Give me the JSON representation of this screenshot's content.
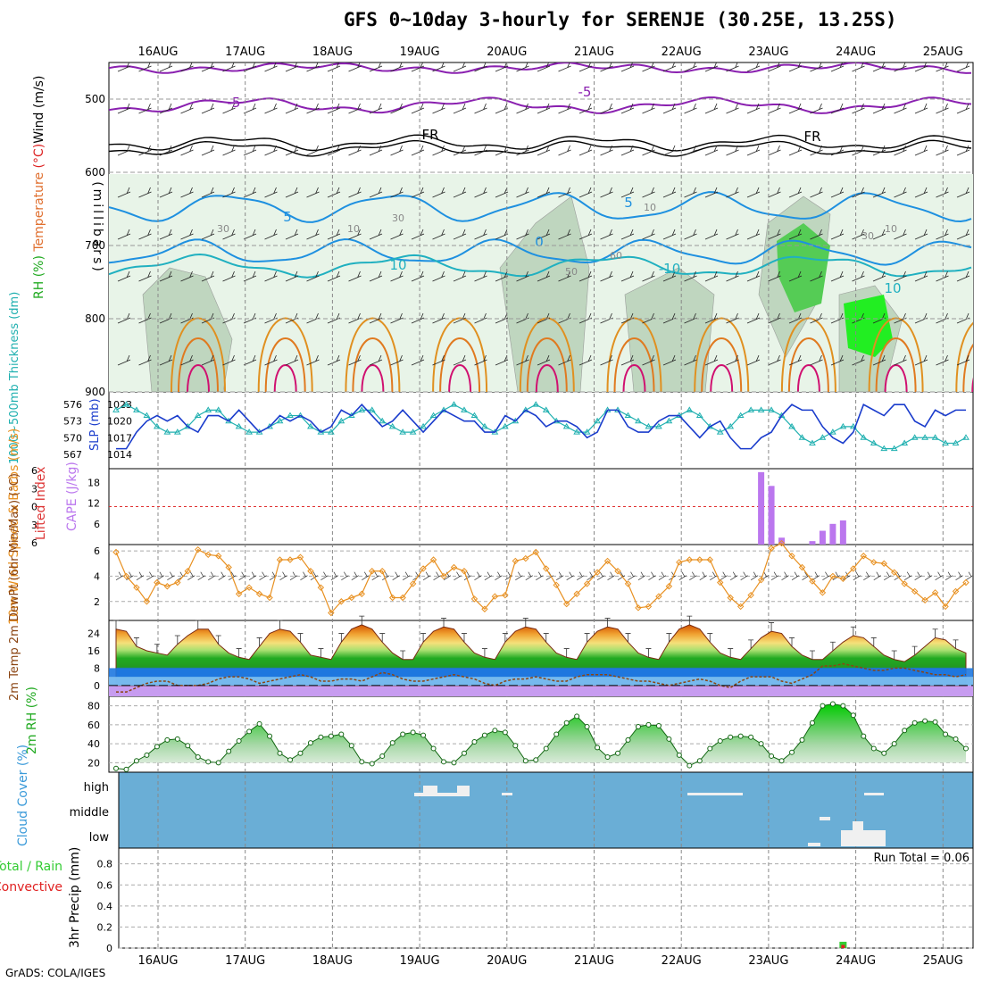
{
  "title": "GFS 0~10day 3-hourly for SERENJE (30.25E, 13.25S)",
  "credit": "GrADS: COLA/IGES",
  "dates": [
    "16AUG",
    "17AUG",
    "18AUG",
    "19AUG",
    "20AUG",
    "21AUG",
    "22AUG",
    "23AUG",
    "24AUG",
    "25AUG"
  ],
  "colors": {
    "temp_contour_cold": "#8a20b0",
    "temp_contour_cool": "#1e90e0",
    "temp_contour_warm": "#e09020",
    "temp_contour_hot": "#d01070",
    "freezing": "#000000",
    "rh_green": "#33cc33",
    "slp": "#1a3ccc",
    "thickness": "#20b0b0",
    "cape": "#bb77ee",
    "wind10m": "#e89020",
    "cloud_bg": "#6aaed6",
    "precip_total": "#33cc33",
    "precip_conv": "#e02020"
  },
  "chart_data": [
    {
      "id": "upper-air",
      "type": "heatmap",
      "ylabel_parts": [
        {
          "text": "RH (%)",
          "color": "#22aa22"
        },
        {
          "text": " Temperature ",
          "color": "#e07030"
        },
        {
          "text": "(°C)",
          "color": "#dd2222"
        },
        {
          "text": "Wind (m/s)",
          "color": "#000000"
        }
      ],
      "ylabel2": "(millibars)",
      "yticks": [
        500,
        600,
        700,
        800,
        900
      ],
      "ylim": [
        450,
        900
      ],
      "contour_labels": [
        "-5",
        "-5",
        "FR",
        "FR",
        "5",
        "5",
        "0",
        "10",
        "-10",
        "10",
        "30",
        "30",
        "10",
        "50",
        "60",
        "10",
        "30",
        "10"
      ]
    },
    {
      "id": "slp-thickness",
      "type": "line",
      "ylabel_left": "1000~500mb Thickness (dm)",
      "ylabel_right": "SLP (mb)",
      "thickness_ticks": [
        567,
        570,
        573,
        576
      ],
      "slp_ticks": [
        1014,
        1017,
        1020,
        1023
      ],
      "series": [
        {
          "name": "SLP (mb)",
          "axis": "right",
          "values": [
            1015,
            1015,
            1018,
            1020,
            1021,
            1020,
            1021,
            1019,
            1018,
            1021,
            1021,
            1020,
            1022,
            1020,
            1018,
            1019,
            1021,
            1020,
            1021,
            1020,
            1018,
            1019,
            1022,
            1021,
            1023,
            1021,
            1019,
            1020,
            1022,
            1020,
            1018,
            1020,
            1022,
            1021,
            1020,
            1020,
            1018,
            1018,
            1021,
            1020,
            1022,
            1021,
            1019,
            1020,
            1020,
            1019,
            1017,
            1018,
            1022,
            1022,
            1019,
            1018,
            1018,
            1020,
            1021,
            1021,
            1019,
            1017,
            1019,
            1020,
            1017,
            1015,
            1015,
            1017,
            1018,
            1021,
            1023,
            1022,
            1022,
            1019,
            1017,
            1016,
            1018,
            1023,
            1022,
            1021,
            1023,
            1023,
            1020,
            1019,
            1022,
            1021,
            1022,
            1022
          ]
        },
        {
          "name": "Thickness (dm)",
          "axis": "left",
          "values": [
            575,
            576,
            575,
            574,
            572,
            571,
            571,
            572,
            574,
            575,
            575,
            573,
            572,
            571,
            571,
            572,
            573,
            574,
            574,
            572,
            571,
            571,
            573,
            574,
            575,
            575,
            573,
            572,
            571,
            571,
            572,
            574,
            575,
            576,
            575,
            574,
            572,
            571,
            572,
            573,
            575,
            576,
            575,
            573,
            572,
            571,
            571,
            573,
            575,
            575,
            574,
            573,
            572,
            572,
            573,
            574,
            575,
            574,
            572,
            571,
            572,
            574,
            575,
            575,
            575,
            574,
            572,
            570,
            569,
            570,
            571,
            572,
            572,
            570,
            569,
            568,
            568,
            569,
            570,
            570,
            570,
            569,
            569,
            570
          ]
        }
      ]
    },
    {
      "id": "cape-li",
      "type": "bar",
      "ylabel_left": "Lifted Index",
      "ylabel_right": "CAPE (J/kg)",
      "li_ticks": [
        -6,
        -3,
        0,
        3,
        6
      ],
      "cape_ticks": [
        6,
        12,
        18
      ],
      "series": [
        {
          "name": "CAPE (J/kg)",
          "x": [
            63,
            64,
            65,
            66,
            67,
            68,
            69,
            70,
            71
          ],
          "values": [
            21,
            17,
            2,
            0,
            0,
            1,
            4,
            6,
            7
          ]
        }
      ]
    },
    {
      "id": "wind10m",
      "type": "line",
      "ylabel": "10m Wind Speed & Barbs (m/s)",
      "yticks": [
        2,
        4,
        6
      ],
      "ylim": [
        0.5,
        6.5
      ],
      "series": [
        {
          "name": "10m Wind Speed (m/s)",
          "values": [
            5.9,
            4.0,
            3.1,
            2.0,
            3.5,
            3.2,
            3.5,
            4.4,
            6.1,
            5.7,
            5.6,
            4.7,
            2.6,
            3.1,
            2.6,
            2.3,
            5.3,
            5.3,
            5.5,
            4.4,
            3.1,
            1.1,
            2.0,
            2.3,
            2.6,
            4.4,
            4.4,
            2.3,
            2.3,
            3.4,
            4.6,
            5.3,
            4.0,
            4.7,
            4.4,
            2.2,
            1.4,
            2.4,
            2.5,
            5.2,
            5.4,
            5.9,
            4.6,
            3.3,
            1.8,
            2.6,
            3.4,
            4.3,
            5.2,
            4.4,
            3.4,
            1.5,
            1.6,
            2.4,
            3.2,
            5.1,
            5.3,
            5.3,
            5.3,
            3.5,
            2.3,
            1.6,
            2.5,
            3.7,
            6.2,
            6.6,
            5.6,
            4.7,
            3.6,
            2.7,
            4.0,
            3.8,
            4.6,
            5.6,
            5.1,
            5.0,
            4.3,
            3.4,
            2.8,
            2.1,
            2.7,
            1.6,
            2.8,
            3.5
          ]
        }
      ]
    },
    {
      "id": "temp-dewpt",
      "type": "area",
      "ylabel": "2m Temp 2m DewPt (6hr Min/Max) (°C)",
      "yticks": [
        0,
        8,
        16,
        24
      ],
      "ylim": [
        -5,
        30
      ],
      "series": [
        {
          "name": "2m Temp (°C)",
          "values": [
            26,
            25,
            18,
            16,
            15,
            14,
            19,
            23,
            26,
            26,
            19,
            15,
            13,
            12,
            18,
            24,
            26,
            25,
            20,
            14,
            13,
            12,
            20,
            26,
            28,
            26,
            20,
            15,
            12,
            12,
            20,
            25,
            27,
            26,
            20,
            15,
            13,
            12,
            20,
            25,
            27,
            26,
            20,
            15,
            13,
            12,
            20,
            25,
            27,
            26,
            20,
            15,
            13,
            12,
            20,
            26,
            28,
            26,
            20,
            15,
            13,
            12,
            17,
            22,
            25,
            24,
            18,
            14,
            12,
            12,
            16,
            20,
            23,
            22,
            18,
            14,
            12,
            11,
            14,
            18,
            22,
            21,
            17,
            15
          ]
        },
        {
          "name": "2m DewPt (°C)",
          "values": [
            -3,
            -3,
            -1,
            1,
            2,
            2,
            0,
            0,
            0,
            1,
            3,
            4,
            4,
            3,
            1,
            2,
            3,
            4,
            5,
            4,
            2,
            2,
            3,
            3,
            2,
            4,
            6,
            5,
            3,
            2,
            2,
            3,
            4,
            5,
            4,
            3,
            1,
            0,
            2,
            3,
            3,
            4,
            3,
            2,
            2,
            4,
            5,
            5,
            5,
            4,
            3,
            2,
            2,
            1,
            0,
            1,
            2,
            3,
            2,
            0,
            -1,
            2,
            4,
            4,
            4,
            2,
            1,
            3,
            5,
            9,
            9,
            10,
            9,
            8,
            7,
            7,
            8,
            8,
            7,
            6,
            5,
            5,
            4,
            5
          ]
        }
      ]
    },
    {
      "id": "rh2m",
      "type": "area",
      "ylabel": "2m RH (%)",
      "yticks": [
        20,
        40,
        60,
        80
      ],
      "ylim": [
        10,
        90
      ],
      "series": [
        {
          "name": "2m RH (%)",
          "values": [
            14,
            13,
            22,
            28,
            37,
            44,
            45,
            38,
            26,
            21,
            20,
            32,
            43,
            53,
            61,
            48,
            30,
            23,
            30,
            41,
            47,
            48,
            50,
            38,
            21,
            19,
            27,
            41,
            50,
            52,
            49,
            35,
            21,
            20,
            30,
            42,
            49,
            54,
            52,
            38,
            22,
            23,
            35,
            50,
            62,
            69,
            58,
            36,
            26,
            30,
            44,
            58,
            60,
            59,
            45,
            28,
            17,
            22,
            35,
            43,
            47,
            48,
            47,
            40,
            27,
            22,
            31,
            44,
            62,
            80,
            82,
            80,
            70,
            48,
            35,
            30,
            40,
            54,
            62,
            64,
            63,
            50,
            45,
            35
          ]
        }
      ]
    },
    {
      "id": "cloud-cover",
      "type": "heatmap",
      "ylabel": "Cloud Cover (%)",
      "levels": [
        "high",
        "middle",
        "low"
      ]
    },
    {
      "id": "precip",
      "type": "bar",
      "ylabel_left": "Total / Rain Convective",
      "ylabel_right": "3hr Precip (mm)",
      "yticks": [
        0,
        0.2,
        0.4,
        0.6,
        0.8
      ],
      "ylim": [
        0,
        0.95
      ],
      "run_total_label": "Run Total = 0.06",
      "series": [
        {
          "name": "Total",
          "x": [
            71
          ],
          "values": [
            0.06
          ]
        },
        {
          "name": "Convective",
          "x": [
            71
          ],
          "values": [
            0.03
          ]
        }
      ]
    }
  ]
}
